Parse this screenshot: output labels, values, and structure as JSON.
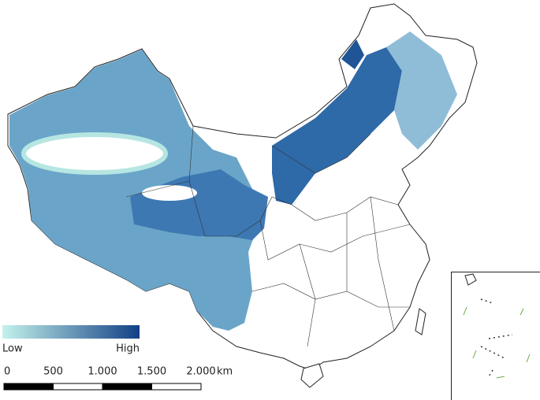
{
  "legend": {
    "low": "Low",
    "high": "High",
    "colors": [
      "#c4f2ec",
      "#123f85"
    ]
  },
  "scale_bar": {
    "ticks": [
      {
        "value": 0,
        "label": "0"
      },
      {
        "value": 500,
        "label": "500"
      },
      {
        "value": 1000,
        "label": "1.000"
      },
      {
        "value": 1500,
        "label": "1.500"
      },
      {
        "value": 2000,
        "label": "2.000"
      }
    ],
    "unit": "km"
  }
}
